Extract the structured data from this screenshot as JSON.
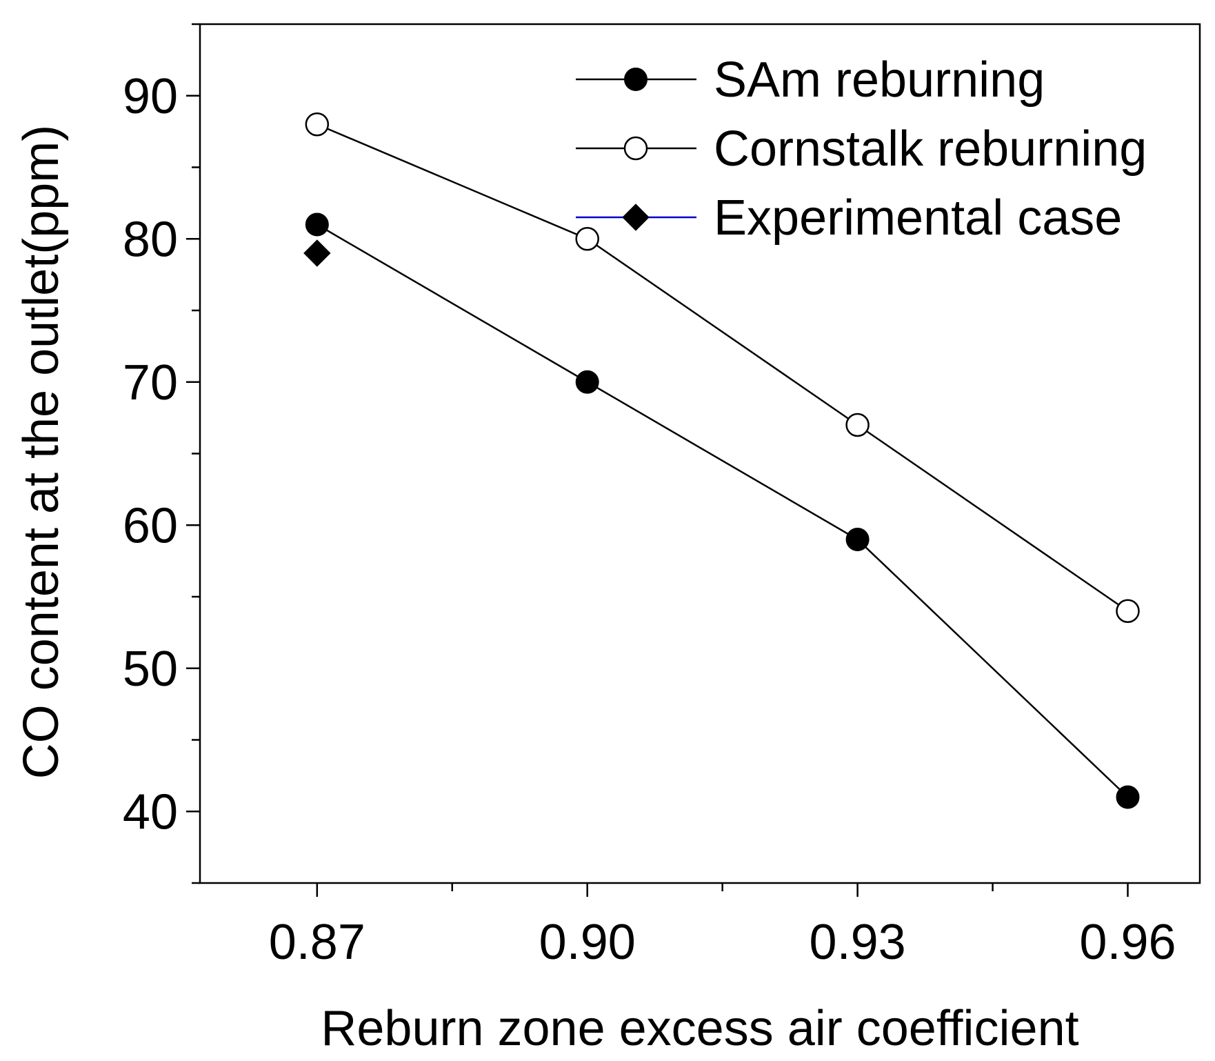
{
  "chart_data": {
    "type": "line",
    "title": "",
    "xlabel": "Reburn zone excess air coefficient",
    "ylabel": "CO content at the outlet(ppm)",
    "xlim": [
      0.857,
      0.968
    ],
    "ylim": [
      35,
      95
    ],
    "x_ticks": [
      0.87,
      0.9,
      0.93,
      0.96
    ],
    "x_tick_labels": [
      "0.87",
      "0.90",
      "0.93",
      "0.96"
    ],
    "y_ticks": [
      40,
      50,
      60,
      70,
      80,
      90
    ],
    "y_tick_labels": [
      "40",
      "50",
      "60",
      "70",
      "80",
      "90"
    ],
    "grid": false,
    "legend_position": "top-right",
    "series": [
      {
        "name": "SAm reburning",
        "marker": "filled-circle",
        "line_color": "#000000",
        "x": [
          0.87,
          0.9,
          0.93,
          0.96
        ],
        "values": [
          81,
          70,
          59,
          41
        ]
      },
      {
        "name": "Cornstalk reburning",
        "marker": "open-circle",
        "line_color": "#000000",
        "x": [
          0.87,
          0.9,
          0.93,
          0.96
        ],
        "values": [
          88,
          80,
          67,
          54
        ]
      },
      {
        "name": "Experimental case",
        "marker": "filled-diamond",
        "line_color": "#0000cc",
        "x": [
          0.87
        ],
        "values": [
          79
        ]
      }
    ]
  }
}
